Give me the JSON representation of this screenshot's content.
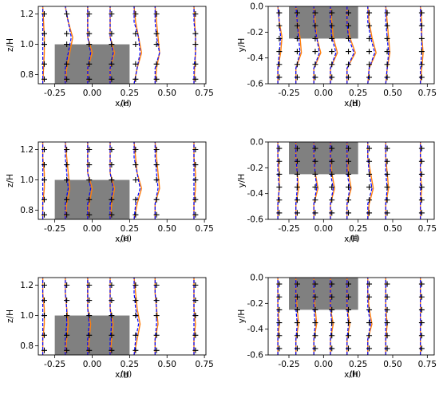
{
  "figure": {
    "captions": [
      "(c)",
      "(d)",
      "(e)",
      "(f)",
      "(g)",
      "(h)"
    ]
  },
  "colors": {
    "obstacle": "#808080",
    "line_solid": "#ff7f0e",
    "line_dashed": "#0000ff",
    "markers": "#000000",
    "frame": "#000000"
  },
  "chart_data": [
    {
      "panel": "(c)",
      "type": "line",
      "plane": "side",
      "xlabel": "x/H",
      "ylabel": "z/H",
      "xlim": [
        -0.36,
        0.76
      ],
      "ylim": [
        0.74,
        1.25
      ],
      "xticks": [
        "-0.25",
        "0.00",
        "0.25",
        "0.50",
        "0.75"
      ],
      "yticks": [
        "0.8",
        "1.0",
        "1.2"
      ],
      "obstacle": {
        "x": [
          -0.25,
          0.25
        ],
        "y": [
          0.74,
          1.0
        ]
      },
      "profile_stations_x": [
        -0.33,
        -0.18,
        -0.03,
        0.12,
        0.28,
        0.42,
        0.68
      ],
      "marker_y": [
        1.2,
        1.07,
        1.0,
        0.87,
        0.77
      ],
      "series": [
        {
          "style": "solid",
          "dx": [
            [
              0.0,
              0.005,
              0.01,
              0.01,
              0.005,
              0.0
            ],
            [
              0.0,
              0.01,
              0.03,
              0.05,
              0.02,
              0.0
            ],
            [
              0.0,
              0.0,
              0.03,
              0.0,
              0.0,
              0.0
            ],
            [
              0.0,
              0.0,
              0.03,
              0.0,
              0.0,
              0.0
            ],
            [
              0.0,
              0.02,
              0.05,
              0.03,
              0.01,
              0.0
            ],
            [
              0.0,
              0.01,
              0.03,
              0.02,
              0.01,
              0.0
            ],
            [
              0.0,
              0.005,
              0.01,
              0.01,
              0.005,
              0.0
            ]
          ]
        },
        {
          "style": "dashed",
          "dx": [
            [
              0.0,
              0.0,
              0.0,
              0.0,
              0.0,
              0.0
            ],
            [
              0.0,
              0.0,
              0.02,
              0.04,
              0.02,
              0.0
            ],
            [
              0.0,
              0.0,
              0.02,
              0.0,
              0.0,
              0.0
            ],
            [
              0.0,
              0.0,
              0.02,
              0.0,
              0.0,
              0.0
            ],
            [
              0.0,
              0.02,
              0.04,
              0.03,
              0.0,
              0.0
            ],
            [
              0.0,
              0.0,
              0.03,
              0.01,
              0.0,
              0.0
            ],
            [
              0.0,
              0.0,
              0.01,
              0.01,
              0.0,
              0.0
            ]
          ]
        }
      ]
    },
    {
      "panel": "(d)",
      "type": "line",
      "plane": "top",
      "xlabel": "x/H",
      "ylabel": "y/H",
      "xlim": [
        -0.4,
        0.8
      ],
      "ylim": [
        -0.6,
        0.0
      ],
      "xticks": [
        "-0.25",
        "0.00",
        "0.25",
        "0.50",
        "0.75"
      ],
      "yticks": [
        "-0.6",
        "-0.4",
        "-0.2",
        "0.0"
      ],
      "obstacle": {
        "x": [
          -0.25,
          0.25
        ],
        "y": [
          -0.25,
          0.0
        ]
      },
      "profile_stations_x": [
        -0.33,
        -0.2,
        -0.07,
        0.05,
        0.17,
        0.32,
        0.45,
        0.7
      ],
      "marker_y": [
        -0.05,
        -0.15,
        -0.25,
        -0.35,
        -0.45,
        -0.55
      ],
      "series": [
        {
          "style": "solid",
          "dx": [
            [
              0.0,
              0.0,
              0.02,
              0.03,
              0.01,
              0.0
            ],
            [
              0.0,
              0.0,
              0.04,
              0.03,
              0.01,
              0.0
            ],
            [
              0.0,
              0.0,
              0.05,
              0.02,
              0.01,
              0.0
            ],
            [
              0.0,
              0.0,
              0.05,
              0.02,
              0.01,
              0.0
            ],
            [
              0.0,
              0.0,
              0.06,
              0.02,
              0.0,
              0.0
            ],
            [
              0.0,
              0.01,
              0.06,
              0.03,
              0.01,
              0.0
            ],
            [
              0.0,
              0.01,
              0.03,
              0.02,
              0.01,
              0.0
            ],
            [
              0.0,
              0.01,
              0.02,
              0.01,
              0.01,
              0.0
            ]
          ]
        },
        {
          "style": "dashed",
          "dx": [
            [
              0.0,
              0.0,
              0.01,
              0.02,
              0.01,
              0.0
            ],
            [
              0.0,
              0.0,
              0.03,
              0.02,
              0.01,
              0.0
            ],
            [
              0.0,
              0.0,
              0.04,
              0.02,
              0.0,
              0.0
            ],
            [
              0.0,
              0.0,
              0.04,
              0.01,
              0.0,
              0.0
            ],
            [
              0.0,
              0.0,
              0.05,
              0.01,
              0.0,
              0.0
            ],
            [
              0.0,
              0.01,
              0.05,
              0.02,
              0.0,
              0.0
            ],
            [
              0.0,
              0.01,
              0.02,
              0.01,
              0.0,
              0.0
            ],
            [
              0.0,
              0.0,
              0.01,
              0.01,
              0.0,
              0.0
            ]
          ]
        }
      ]
    },
    {
      "panel": "(e)",
      "type": "line",
      "plane": "side",
      "xlabel": "x/H",
      "ylabel": "z/H",
      "xlim": [
        -0.36,
        0.76
      ],
      "ylim": [
        0.74,
        1.25
      ],
      "xticks": [
        "-0.25",
        "0.00",
        "0.25",
        "0.50",
        "0.75"
      ],
      "yticks": [
        "0.8",
        "1.0",
        "1.2"
      ],
      "obstacle": {
        "x": [
          -0.25,
          0.25
        ],
        "y": [
          0.74,
          1.0
        ]
      },
      "profile_stations_x": [
        -0.33,
        -0.18,
        -0.03,
        0.12,
        0.28,
        0.42,
        0.68
      ],
      "marker_y": [
        1.2,
        1.1,
        1.0,
        0.87,
        0.77
      ],
      "series": [
        {
          "style": "solid",
          "dx": [
            [
              0.0,
              0.0,
              0.01,
              0.01,
              0.0,
              0.0
            ],
            [
              0.0,
              0.01,
              0.03,
              0.02,
              0.01,
              0.0
            ],
            [
              0.0,
              0.01,
              0.03,
              0.0,
              0.0,
              0.0
            ],
            [
              0.0,
              0.01,
              0.03,
              0.0,
              0.0,
              0.0
            ],
            [
              0.0,
              0.02,
              0.05,
              0.02,
              0.01,
              0.0
            ],
            [
              0.0,
              0.0,
              0.03,
              0.02,
              0.01,
              0.0
            ],
            [
              0.0,
              0.0,
              0.01,
              0.01,
              0.0,
              0.0
            ]
          ]
        },
        {
          "style": "dashed",
          "dx": [
            [
              0.0,
              0.0,
              0.0,
              0.0,
              0.0,
              0.0
            ],
            [
              0.0,
              0.0,
              0.02,
              0.01,
              0.0,
              0.0
            ],
            [
              0.0,
              0.0,
              0.02,
              0.0,
              0.0,
              0.0
            ],
            [
              0.0,
              0.0,
              0.02,
              0.0,
              0.0,
              0.0
            ],
            [
              0.0,
              0.01,
              0.04,
              0.02,
              0.0,
              0.0
            ],
            [
              0.0,
              0.0,
              0.02,
              0.01,
              0.0,
              0.0
            ],
            [
              0.0,
              0.0,
              0.0,
              0.0,
              0.0,
              0.0
            ]
          ]
        }
      ]
    },
    {
      "panel": "(f)",
      "type": "line",
      "plane": "top",
      "xlabel": "x/H",
      "ylabel": "y/H",
      "xlim": [
        -0.4,
        0.8
      ],
      "ylim": [
        -0.6,
        0.0
      ],
      "xticks": [
        "-0.25",
        "0.00",
        "0.25",
        "0.50",
        "0.75"
      ],
      "yticks": [
        "-0.6",
        "-0.4",
        "-0.2",
        "0.0"
      ],
      "obstacle": {
        "x": [
          -0.25,
          0.25
        ],
        "y": [
          -0.25,
          0.0
        ]
      },
      "profile_stations_x": [
        -0.33,
        -0.2,
        -0.07,
        0.05,
        0.17,
        0.32,
        0.45,
        0.7
      ],
      "marker_y": [
        -0.05,
        -0.15,
        -0.25,
        -0.35,
        -0.45,
        -0.55
      ],
      "series": [
        {
          "style": "solid",
          "dx": [
            [
              0.0,
              0.0,
              0.01,
              0.01,
              0.0,
              0.0
            ],
            [
              0.0,
              0.0,
              0.02,
              0.01,
              0.0,
              0.0
            ],
            [
              0.0,
              0.0,
              0.03,
              0.01,
              0.0,
              0.0
            ],
            [
              0.0,
              0.0,
              0.03,
              0.01,
              0.0,
              0.0
            ],
            [
              0.0,
              0.0,
              0.03,
              0.01,
              0.0,
              0.0
            ],
            [
              0.0,
              0.01,
              0.04,
              0.02,
              0.0,
              0.0
            ],
            [
              0.0,
              0.0,
              0.02,
              0.01,
              0.0,
              0.0
            ],
            [
              0.0,
              0.0,
              0.01,
              0.0,
              0.0,
              0.0
            ]
          ]
        },
        {
          "style": "dashed",
          "dx": [
            [
              0.0,
              0.0,
              0.01,
              0.0,
              0.0,
              0.0
            ],
            [
              0.0,
              0.0,
              0.01,
              0.01,
              0.0,
              0.0
            ],
            [
              0.0,
              0.0,
              0.02,
              0.01,
              0.0,
              0.0
            ],
            [
              0.0,
              0.0,
              0.02,
              0.0,
              0.0,
              0.0
            ],
            [
              0.0,
              0.0,
              0.02,
              0.0,
              0.0,
              0.0
            ],
            [
              0.0,
              0.0,
              0.03,
              0.01,
              0.0,
              0.0
            ],
            [
              0.0,
              0.0,
              0.01,
              0.0,
              0.0,
              0.0
            ],
            [
              0.0,
              0.0,
              0.0,
              0.0,
              0.0,
              0.0
            ]
          ]
        }
      ]
    },
    {
      "panel": "(g)",
      "type": "line",
      "plane": "side",
      "xlabel": "x/H",
      "ylabel": "z/H",
      "xlim": [
        -0.36,
        0.76
      ],
      "ylim": [
        0.74,
        1.25
      ],
      "xticks": [
        "-0.25",
        "0.00",
        "0.25",
        "0.50",
        "0.75"
      ],
      "yticks": [
        "0.8",
        "1.0",
        "1.2"
      ],
      "obstacle": {
        "x": [
          -0.25,
          0.25
        ],
        "y": [
          0.74,
          1.0
        ]
      },
      "profile_stations_x": [
        -0.33,
        -0.18,
        -0.03,
        0.12,
        0.28,
        0.42,
        0.68
      ],
      "marker_y": [
        1.2,
        1.1,
        1.0,
        0.87,
        0.77
      ],
      "series": [
        {
          "style": "solid",
          "dx": [
            [
              0.0,
              0.0,
              0.01,
              0.01,
              0.0,
              0.0
            ],
            [
              0.0,
              0.01,
              0.02,
              0.01,
              0.0,
              0.0
            ],
            [
              0.0,
              0.01,
              0.02,
              0.0,
              0.0,
              0.0
            ],
            [
              0.0,
              0.01,
              0.02,
              0.0,
              0.0,
              0.0
            ],
            [
              0.0,
              0.02,
              0.04,
              0.02,
              0.01,
              0.0
            ],
            [
              0.0,
              0.0,
              0.02,
              0.01,
              0.0,
              0.0
            ],
            [
              0.0,
              0.0,
              0.01,
              0.0,
              0.0,
              0.0
            ]
          ]
        },
        {
          "style": "dashed",
          "dx": [
            [
              0.0,
              0.0,
              0.0,
              0.0,
              0.0,
              0.0
            ],
            [
              0.0,
              0.0,
              0.01,
              0.01,
              0.0,
              0.0
            ],
            [
              0.0,
              0.0,
              0.01,
              0.0,
              0.0,
              0.0
            ],
            [
              0.0,
              0.0,
              0.01,
              0.0,
              0.0,
              0.0
            ],
            [
              0.0,
              0.01,
              0.03,
              0.01,
              0.0,
              0.0
            ],
            [
              0.0,
              0.0,
              0.01,
              0.01,
              0.0,
              0.0
            ],
            [
              0.0,
              0.0,
              0.0,
              0.0,
              0.0,
              0.0
            ]
          ]
        }
      ]
    },
    {
      "panel": "(h)",
      "type": "line",
      "plane": "top",
      "xlabel": "x/H",
      "ylabel": "y/H",
      "xlim": [
        -0.4,
        0.8
      ],
      "ylim": [
        -0.6,
        0.0
      ],
      "xticks": [
        "-0.25",
        "0.00",
        "0.25",
        "0.50",
        "0.75"
      ],
      "yticks": [
        "-0.6",
        "-0.4",
        "-0.2",
        "0.0"
      ],
      "obstacle": {
        "x": [
          -0.25,
          0.25
        ],
        "y": [
          -0.25,
          0.0
        ]
      },
      "profile_stations_x": [
        -0.33,
        -0.2,
        -0.07,
        0.05,
        0.17,
        0.32,
        0.45,
        0.7
      ],
      "marker_y": [
        -0.05,
        -0.15,
        -0.25,
        -0.35,
        -0.45,
        -0.55
      ],
      "series": [
        {
          "style": "solid",
          "dx": [
            [
              0.0,
              0.0,
              0.01,
              0.0,
              0.0,
              0.0
            ],
            [
              0.0,
              0.0,
              0.02,
              0.01,
              0.0,
              0.0
            ],
            [
              0.0,
              0.0,
              0.02,
              0.01,
              0.0,
              0.0
            ],
            [
              0.0,
              0.0,
              0.02,
              0.0,
              0.0,
              0.0
            ],
            [
              0.0,
              0.0,
              0.02,
              0.0,
              0.0,
              0.0
            ],
            [
              0.0,
              0.0,
              0.03,
              0.01,
              0.0,
              0.0
            ],
            [
              0.0,
              0.0,
              0.01,
              0.0,
              0.0,
              0.0
            ],
            [
              0.0,
              0.0,
              0.0,
              0.0,
              0.0,
              0.0
            ]
          ]
        },
        {
          "style": "dashed",
          "dx": [
            [
              0.0,
              0.0,
              0.0,
              0.0,
              0.0,
              0.0
            ],
            [
              0.0,
              0.0,
              0.01,
              0.0,
              0.0,
              0.0
            ],
            [
              0.0,
              0.0,
              0.01,
              0.0,
              0.0,
              0.0
            ],
            [
              0.0,
              0.0,
              0.01,
              0.0,
              0.0,
              0.0
            ],
            [
              0.0,
              0.0,
              0.01,
              0.0,
              0.0,
              0.0
            ],
            [
              0.0,
              0.0,
              0.02,
              0.0,
              0.0,
              0.0
            ],
            [
              0.0,
              0.0,
              0.0,
              0.0,
              0.0,
              0.0
            ],
            [
              0.0,
              0.0,
              0.0,
              0.0,
              0.0,
              0.0
            ]
          ]
        }
      ]
    }
  ]
}
